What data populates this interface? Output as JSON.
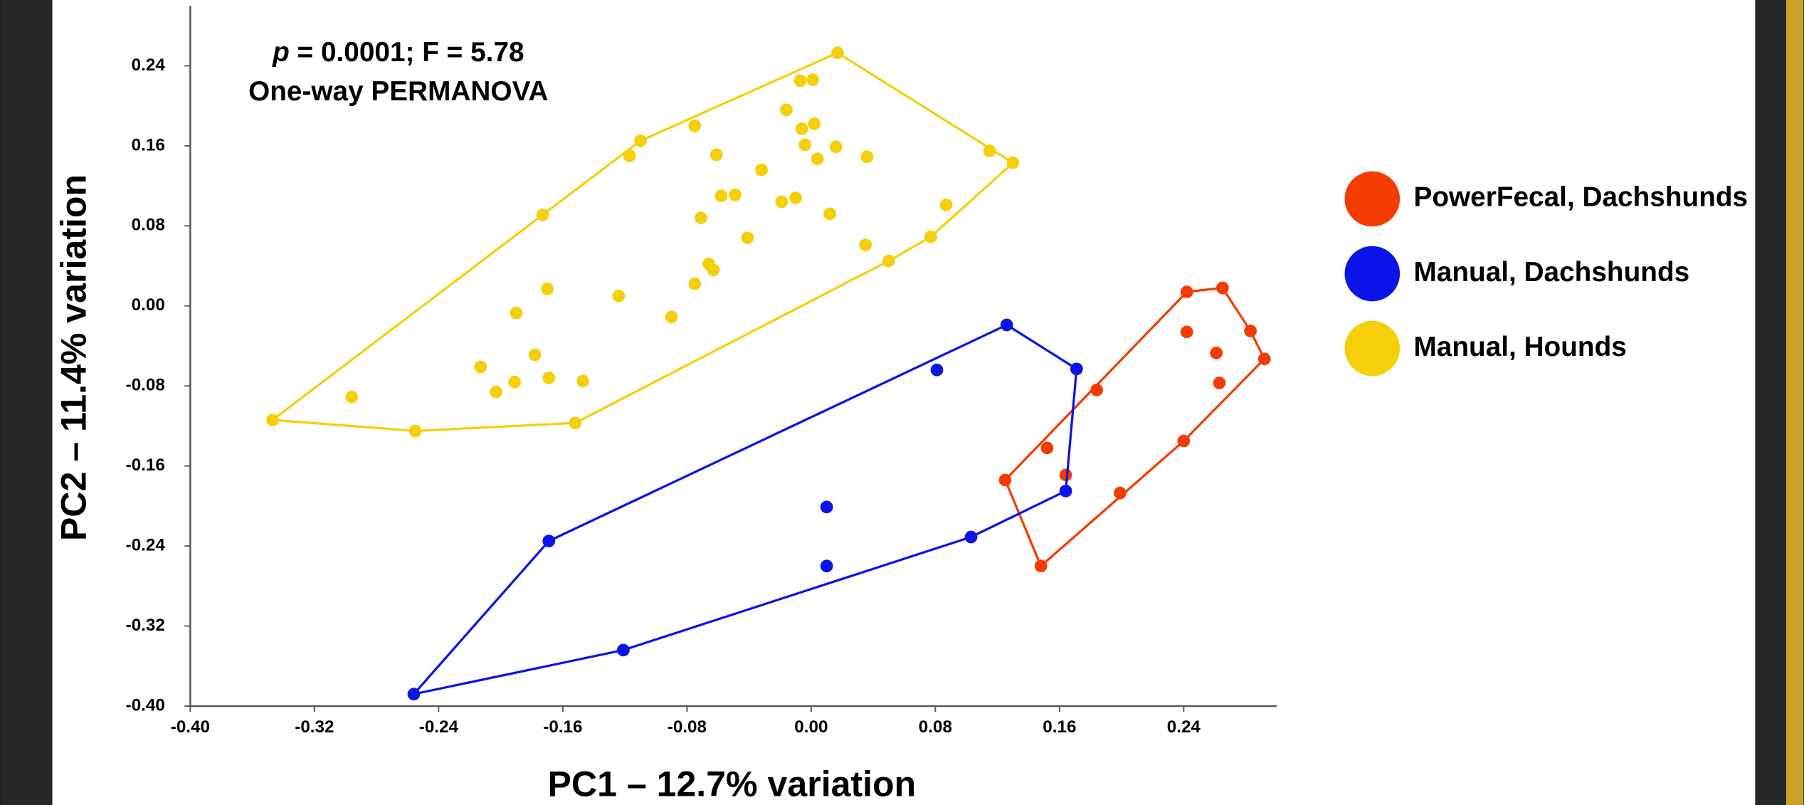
{
  "chart_data": {
    "type": "scatter",
    "annotation": {
      "stat_symbol": "p",
      "stat_text": " = 0.0001; F = 5.78",
      "test": "One-way PERMANOVA"
    },
    "x_label": "PC1 – 12.7% variation",
    "y_label": "PC2 – 11.4% variation",
    "xlim": [
      -0.4,
      0.3
    ],
    "ylim": [
      -0.4,
      0.3
    ],
    "xticks": [
      {
        "value": -0.4,
        "label": "-0.40"
      },
      {
        "value": -0.32,
        "label": "-0.32"
      },
      {
        "value": -0.24,
        "label": "-0.24"
      },
      {
        "value": -0.16,
        "label": "-0.16"
      },
      {
        "value": -0.08,
        "label": "-0.08"
      },
      {
        "value": 0.0,
        "label": "0.00"
      },
      {
        "value": 0.08,
        "label": "0.08"
      },
      {
        "value": 0.16,
        "label": "0.16"
      },
      {
        "value": 0.24,
        "label": "0.24"
      }
    ],
    "yticks": [
      {
        "value": -0.4,
        "label": "-0.40"
      },
      {
        "value": -0.32,
        "label": "-0.32"
      },
      {
        "value": -0.24,
        "label": "-0.24"
      },
      {
        "value": -0.16,
        "label": "-0.16"
      },
      {
        "value": -0.08,
        "label": "-0.08"
      },
      {
        "value": 0.0,
        "label": "0.00"
      },
      {
        "value": 0.08,
        "label": "0.08"
      },
      {
        "value": 0.16,
        "label": "0.16"
      },
      {
        "value": 0.24,
        "label": "0.24"
      }
    ],
    "hulls": true,
    "legend": "right",
    "series": [
      {
        "name": "PowerFecal, Dachshunds",
        "color": "#f53c00",
        "x": [
          0.242,
          0.265,
          0.242,
          0.283,
          0.261,
          0.292,
          0.263,
          0.184,
          0.152,
          0.164,
          0.125,
          0.24,
          0.199,
          0.148
        ],
        "values": [
          0.014,
          0.018,
          -0.026,
          -0.025,
          -0.047,
          -0.053,
          -0.077,
          -0.084,
          -0.142,
          -0.169,
          -0.174,
          -0.135,
          -0.187,
          -0.26
        ]
      },
      {
        "name": "Manual, Dachshunds",
        "color": "#0a14e6",
        "x": [
          0.126,
          0.171,
          0.081,
          0.164,
          0.103,
          0.01,
          0.01,
          -0.169,
          -0.121,
          -0.256
        ],
        "values": [
          -0.019,
          -0.063,
          -0.064,
          -0.185,
          -0.231,
          -0.201,
          -0.26,
          -0.235,
          -0.344,
          -0.388
        ]
      },
      {
        "name": "Manual, Hounds",
        "color": "#f5cf0a",
        "x": [
          -0.347,
          -0.296,
          -0.255,
          -0.152,
          -0.213,
          -0.203,
          -0.191,
          -0.178,
          -0.169,
          -0.147,
          -0.19,
          -0.17,
          -0.173,
          -0.124,
          -0.09,
          -0.117,
          -0.11,
          -0.075,
          -0.075,
          -0.071,
          -0.066,
          -0.063,
          -0.061,
          -0.058,
          -0.049,
          -0.041,
          -0.032,
          -0.019,
          -0.016,
          -0.01,
          -0.007,
          -0.006,
          -0.004,
          0.001,
          0.002,
          0.004,
          0.012,
          0.016,
          0.017,
          0.036,
          0.035,
          0.05,
          0.077,
          0.087,
          0.115,
          0.13
        ],
        "values": [
          -0.114,
          -0.091,
          -0.125,
          -0.117,
          -0.061,
          -0.086,
          -0.076,
          -0.049,
          -0.072,
          -0.075,
          -0.007,
          0.017,
          0.091,
          0.01,
          -0.011,
          0.15,
          0.165,
          0.18,
          0.022,
          0.088,
          0.042,
          0.036,
          0.151,
          0.11,
          0.111,
          0.068,
          0.136,
          0.104,
          0.196,
          0.108,
          0.225,
          0.177,
          0.161,
          0.226,
          0.182,
          0.147,
          0.092,
          0.159,
          0.253,
          0.149,
          0.061,
          0.045,
          0.069,
          0.101,
          0.155,
          0.143
        ]
      }
    ]
  }
}
